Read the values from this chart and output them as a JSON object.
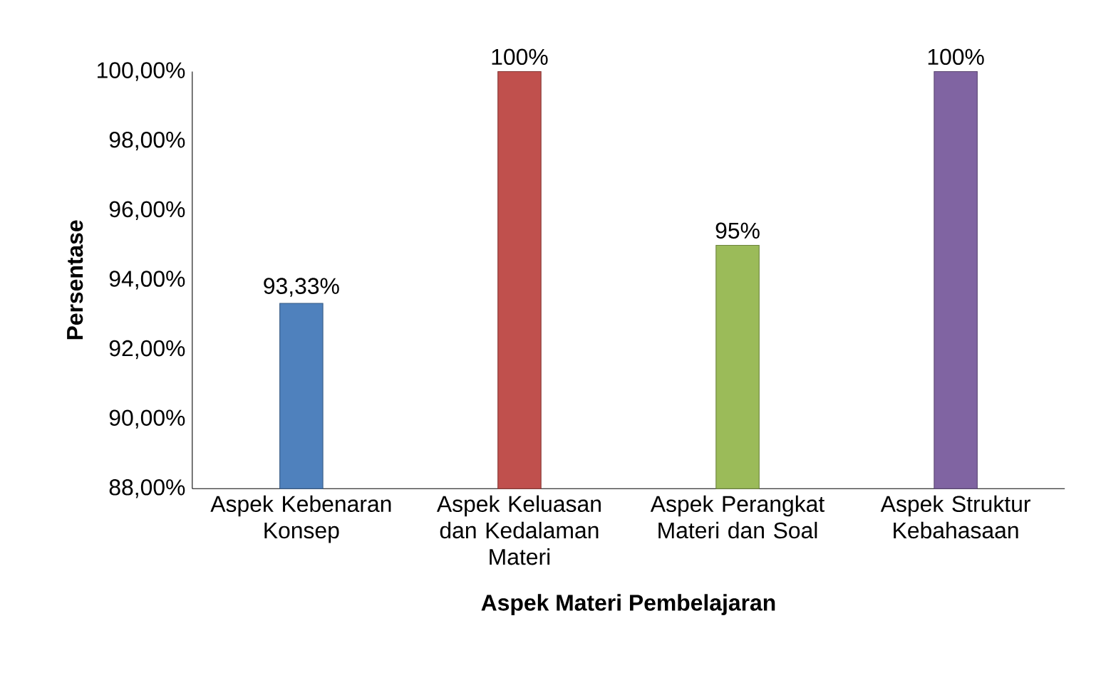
{
  "chart_data": {
    "type": "bar",
    "xlabel": "Aspek Materi Pembelajaran",
    "ylabel": "Persentase",
    "categories": [
      "Aspek Kebenaran Konsep",
      "Aspek Keluasan dan Kedalaman Materi",
      "Aspek Perangkat Materi dan Soal",
      "Aspek Struktur Kebahasaan"
    ],
    "values": [
      93.33,
      100,
      95,
      100
    ],
    "colors": [
      "#4f81bd",
      "#c0504d",
      "#9bbb59",
      "#8064a2"
    ],
    "value_labels": [
      "93,33%",
      "100%",
      "95%",
      "100%"
    ],
    "ylim": [
      88,
      100
    ],
    "yticks": [
      {
        "value": 88,
        "label": "88,00%"
      },
      {
        "value": 90,
        "label": "90,00%"
      },
      {
        "value": 92,
        "label": "92,00%"
      },
      {
        "value": 94,
        "label": "94,00%"
      },
      {
        "value": 96,
        "label": "96,00%"
      },
      {
        "value": 98,
        "label": "98,00%"
      },
      {
        "value": 100,
        "label": "100,00%"
      }
    ]
  }
}
